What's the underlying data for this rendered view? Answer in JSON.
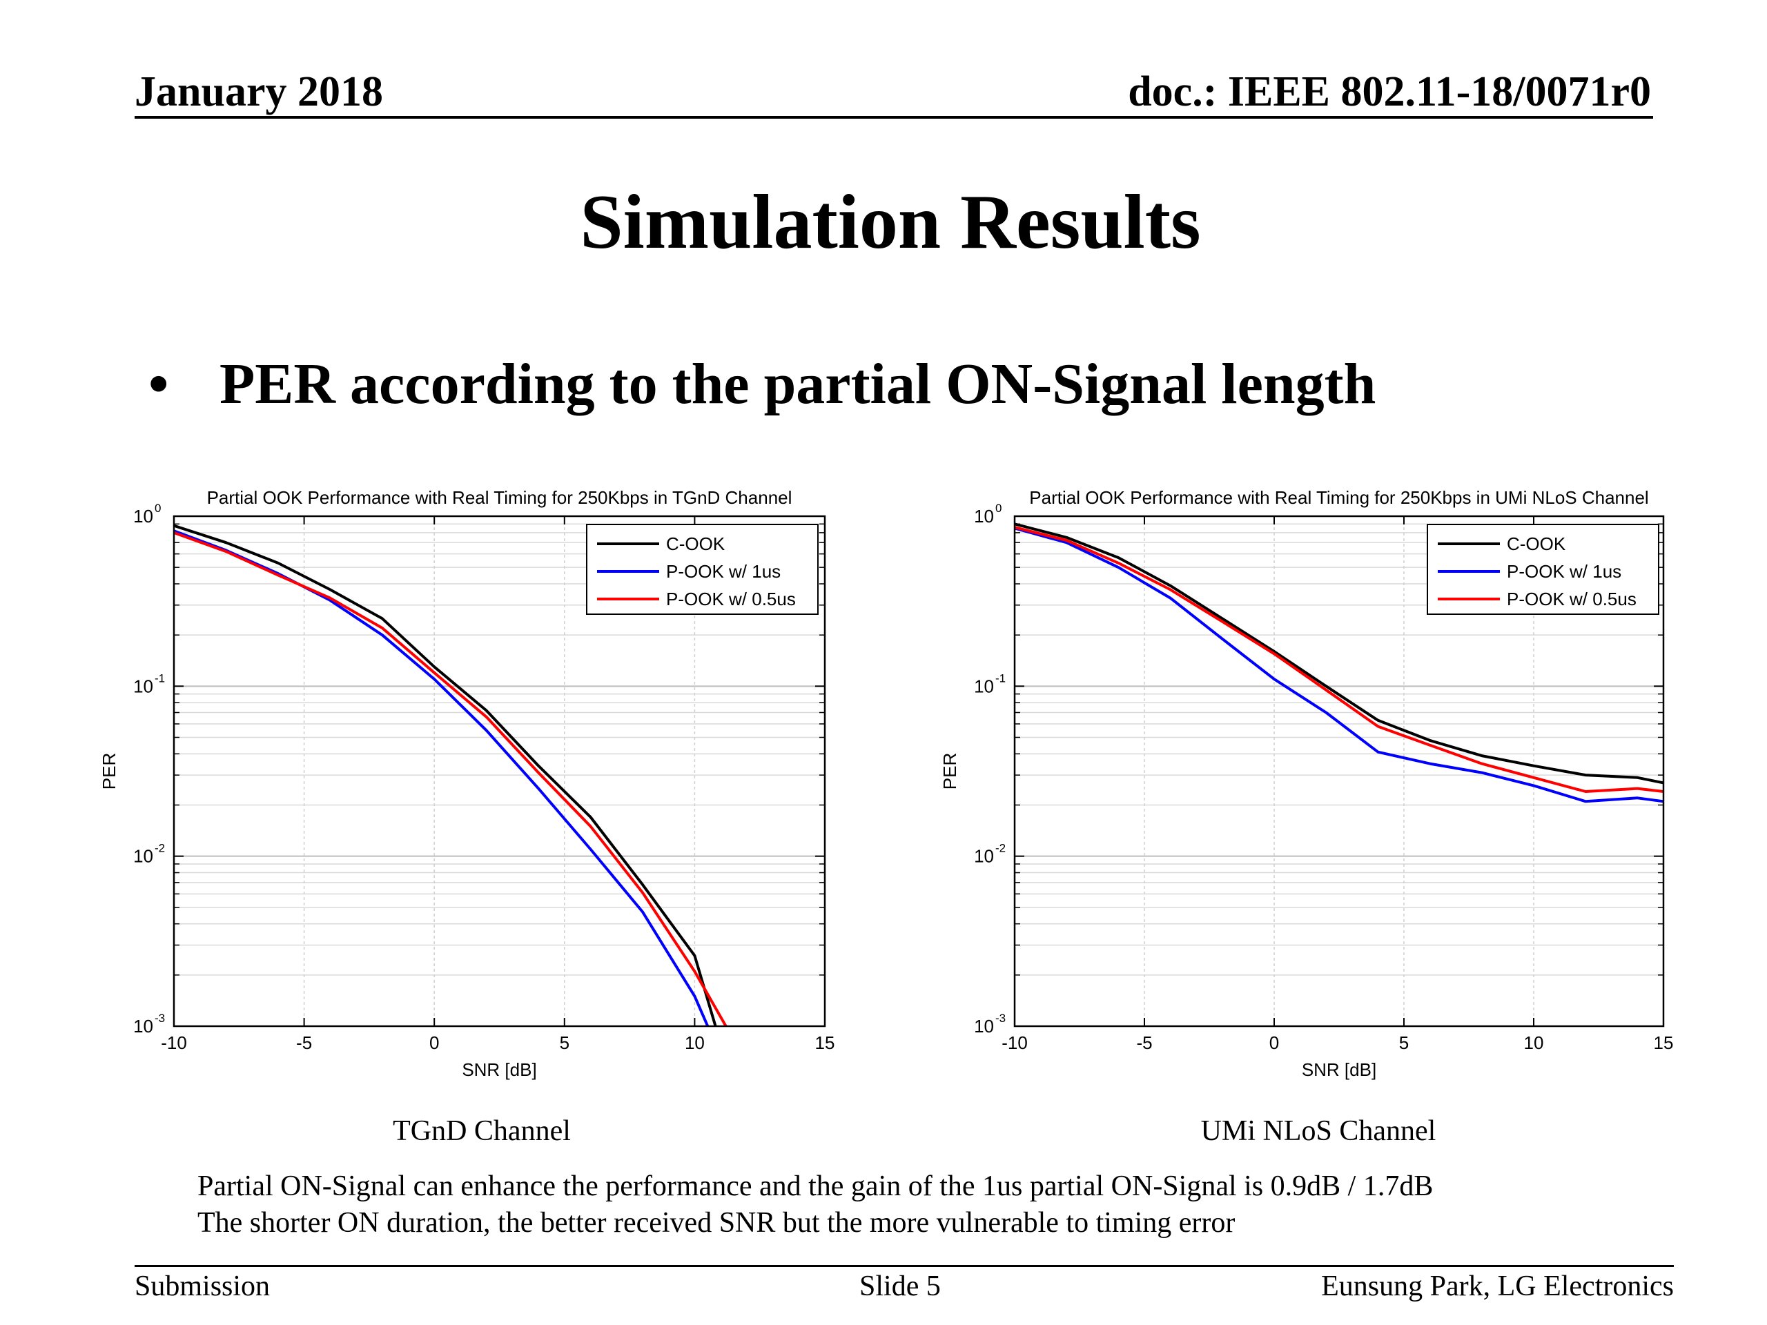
{
  "header": {
    "date": "January 2018",
    "doc": "doc.: IEEE 802.11-18/0071r0"
  },
  "title": "Simulation Results",
  "bullet": {
    "mark": "•",
    "text": "PER according to the partial ON-Signal length"
  },
  "captions": [
    "TGnD Channel",
    "UMi NLoS Channel"
  ],
  "notes": [
    "Partial ON-Signal can enhance the performance and the gain of the 1us partial ON-Signal is 0.9dB / 1.7dB",
    "The shorter ON duration, the better received SNR but the more vulnerable to timing error"
  ],
  "footer": {
    "left": "Submission",
    "center": "Slide 5",
    "right": "Eunsung Park, LG Electronics"
  },
  "colors": {
    "c_ook": "#000000",
    "p_ook_1us": "#0000ff",
    "p_ook_05us": "#ff0000"
  },
  "chart_data": [
    {
      "type": "line",
      "title": "Partial OOK Performance with Real Timing for 250Kbps in TGnD Channel",
      "xlabel": "SNR [dB]",
      "ylabel": "PER",
      "xlim": [
        -10,
        15
      ],
      "ylim": [
        0.001,
        1
      ],
      "yscale": "log",
      "grid": true,
      "legend_position": "top-right",
      "x_ticks": [
        "-10",
        "-5",
        "0",
        "5",
        "10",
        "15"
      ],
      "y_ticks": [
        {
          "base": "10",
          "exp": "0",
          "value": 1
        },
        {
          "base": "10",
          "exp": "-1",
          "value": 0.1
        },
        {
          "base": "10",
          "exp": "-2",
          "value": 0.01
        },
        {
          "base": "10",
          "exp": "-3",
          "value": 0.001
        }
      ],
      "series": [
        {
          "name": "C-OOK",
          "color": "#000000",
          "x": [
            -10,
            -8,
            -6,
            -4,
            -2,
            0,
            2,
            4,
            6,
            8,
            10,
            10.8
          ],
          "y": [
            0.88,
            0.7,
            0.53,
            0.37,
            0.25,
            0.13,
            0.072,
            0.034,
            0.017,
            0.0068,
            0.0026,
            0.001
          ]
        },
        {
          "name": "P-OOK w/ 1us",
          "color": "#0000ff",
          "x": [
            -10,
            -8,
            -6,
            -4,
            -2,
            0,
            2,
            4,
            6,
            8,
            10,
            10.5
          ],
          "y": [
            0.82,
            0.63,
            0.46,
            0.32,
            0.2,
            0.11,
            0.055,
            0.025,
            0.011,
            0.0047,
            0.0015,
            0.001
          ]
        },
        {
          "name": "P-OOK w/ 0.5us",
          "color": "#ff0000",
          "x": [
            -10,
            -8,
            -6,
            -4,
            -2,
            0,
            2,
            4,
            6,
            8,
            10,
            11.2
          ],
          "y": [
            0.8,
            0.62,
            0.45,
            0.33,
            0.22,
            0.12,
            0.066,
            0.031,
            0.015,
            0.0061,
            0.0021,
            0.001
          ]
        }
      ]
    },
    {
      "type": "line",
      "title": "Partial OOK Performance with Real Timing for 250Kbps in UMi NLoS Channel",
      "xlabel": "SNR [dB]",
      "ylabel": "PER",
      "xlim": [
        -10,
        15
      ],
      "ylim": [
        0.001,
        1
      ],
      "yscale": "log",
      "grid": true,
      "legend_position": "top-right",
      "x_ticks": [
        "-10",
        "-5",
        "0",
        "5",
        "10",
        "15"
      ],
      "y_ticks": [
        {
          "base": "10",
          "exp": "0",
          "value": 1
        },
        {
          "base": "10",
          "exp": "-1",
          "value": 0.1
        },
        {
          "base": "10",
          "exp": "-2",
          "value": 0.01
        },
        {
          "base": "10",
          "exp": "-3",
          "value": 0.001
        }
      ],
      "series": [
        {
          "name": "C-OOK",
          "color": "#000000",
          "x": [
            -10,
            -8,
            -6,
            -4,
            -2,
            0,
            2,
            4,
            6,
            8,
            10,
            12,
            14,
            15
          ],
          "y": [
            0.9,
            0.75,
            0.57,
            0.39,
            0.25,
            0.16,
            0.1,
            0.063,
            0.048,
            0.039,
            0.034,
            0.03,
            0.029,
            0.027
          ]
        },
        {
          "name": "P-OOK w/ 1us",
          "color": "#0000ff",
          "x": [
            -10,
            -8,
            -6,
            -4,
            -2,
            0,
            2,
            4,
            6,
            8,
            10,
            12,
            14,
            15
          ],
          "y": [
            0.85,
            0.7,
            0.5,
            0.33,
            0.19,
            0.11,
            0.07,
            0.041,
            0.035,
            0.031,
            0.026,
            0.021,
            0.022,
            0.021
          ]
        },
        {
          "name": "P-OOK w/ 0.5us",
          "color": "#ff0000",
          "x": [
            -10,
            -8,
            -6,
            -4,
            -2,
            0,
            2,
            4,
            6,
            8,
            10,
            12,
            14,
            15
          ],
          "y": [
            0.86,
            0.72,
            0.53,
            0.37,
            0.24,
            0.155,
            0.095,
            0.058,
            0.045,
            0.035,
            0.029,
            0.024,
            0.025,
            0.024
          ]
        }
      ]
    }
  ]
}
